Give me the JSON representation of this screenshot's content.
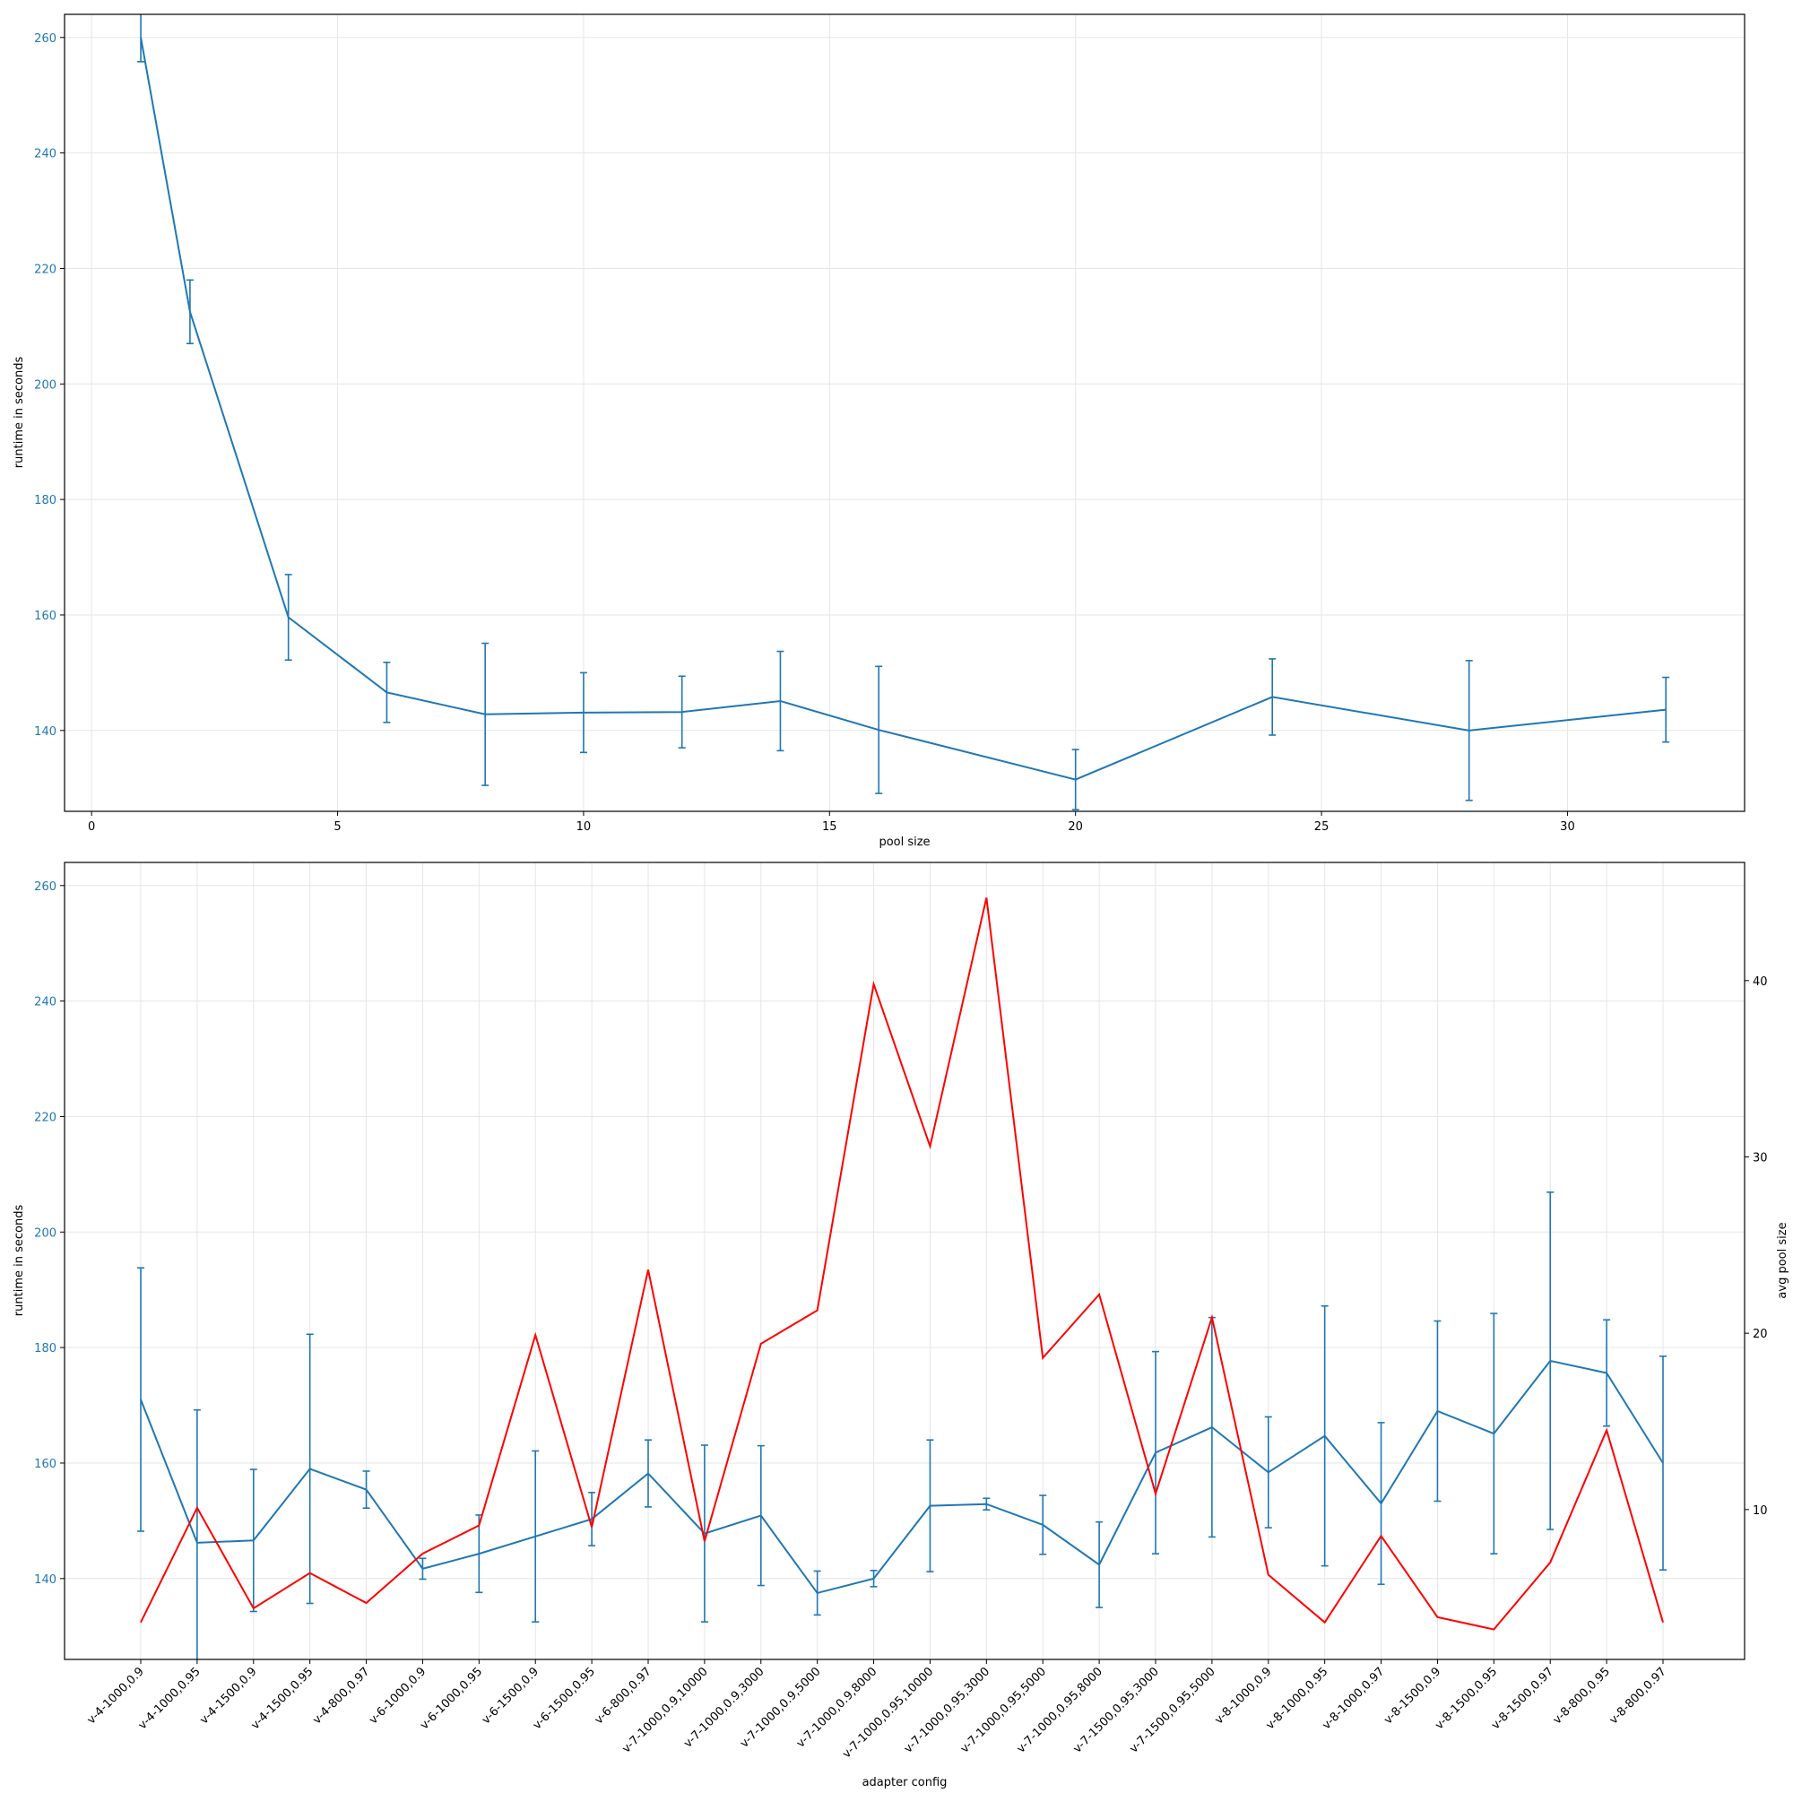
{
  "colors": {
    "runtime": "#1f77b4",
    "pool": "#ff0000"
  },
  "chart_data": [
    {
      "type": "line",
      "xlabel": "pool size",
      "ylabel": "runtime in seconds",
      "xlim": [
        -0.55,
        33.6
      ],
      "ylim": [
        126,
        264
      ],
      "xticks": [
        0,
        5,
        10,
        15,
        20,
        25,
        30
      ],
      "yticks": [
        140,
        160,
        180,
        200,
        220,
        240,
        260
      ],
      "grid": true,
      "series": [
        {
          "x": [
            1,
            2,
            4,
            6,
            8,
            10,
            12,
            14,
            16,
            20,
            24,
            28,
            32
          ],
          "y": [
            260,
            212.5,
            159.6,
            146.6,
            142.8,
            143.1,
            143.2,
            145.1,
            140.1,
            131.5,
            145.8,
            140.0,
            143.6
          ],
          "err": [
            4.2,
            5.5,
            7.4,
            5.2,
            12.3,
            6.9,
            6.2,
            8.6,
            11.0,
            5.2,
            6.6,
            12.1,
            5.6
          ]
        }
      ]
    },
    {
      "type": "line",
      "xlabel": "adapter config",
      "ylabel": "runtime in seconds",
      "y2label": "avg pool size",
      "ylim": [
        126,
        264
      ],
      "y2lim": [
        1.5,
        46.7
      ],
      "yticks": [
        140,
        160,
        180,
        200,
        220,
        240,
        260
      ],
      "y2ticks": [
        10,
        20,
        30,
        40
      ],
      "grid": true,
      "categories": [
        "v-4-1000,0.9",
        "v-4-1000,0.95",
        "v-4-1500,0.9",
        "v-4-1500,0.95",
        "v-4-800,0.97",
        "v-6-1000,0.9",
        "v-6-1000,0.95",
        "v-6-1500,0.9",
        "v-6-1500,0.95",
        "v-6-800,0.97",
        "v-7-1000,0.9,10000",
        "v-7-1000,0.9,3000",
        "v-7-1000,0.9,5000",
        "v-7-1000,0.9,8000",
        "v-7-1000,0.95,10000",
        "v-7-1000,0.95,3000",
        "v-7-1000,0.95,5000",
        "v-7-1000,0.95,8000",
        "v-7-1500,0.95,3000",
        "v-7-1500,0.95,5000",
        "v-8-1000,0.9",
        "v-8-1000,0.95",
        "v-8-1000,0.97",
        "v-8-1500,0.9",
        "v-8-1500,0.95",
        "v-8-1500,0.97",
        "v-8-800,0.95",
        "v-8-800,0.97"
      ],
      "series": [
        {
          "axis": "left",
          "values": [
            171.0,
            146.2,
            146.6,
            159.0,
            155.4,
            141.7,
            144.3,
            147.3,
            150.3,
            158.2,
            147.8,
            150.9,
            137.5,
            140.0,
            152.6,
            152.9,
            149.3,
            142.4,
            161.8,
            166.2,
            158.4,
            164.7,
            153.0,
            169.0,
            165.1,
            177.7,
            175.6,
            160.0
          ],
          "err": [
            22.8,
            23.0,
            12.3,
            23.3,
            3.2,
            1.8,
            6.7,
            14.8,
            4.6,
            5.8,
            15.3,
            12.1,
            3.8,
            1.4,
            11.4,
            1.0,
            5.1,
            7.4,
            17.5,
            19.0,
            9.6,
            22.5,
            14.0,
            15.6,
            20.8,
            29.2,
            9.2,
            18.5
          ]
        },
        {
          "axis": "right",
          "values": [
            3.6,
            10.1,
            4.4,
            6.4,
            4.7,
            7.5,
            9.1,
            19.9,
            9.0,
            23.6,
            8.2,
            19.4,
            21.3,
            39.8,
            30.6,
            44.7,
            18.6,
            22.2,
            10.9,
            20.9,
            6.3,
            3.6,
            8.5,
            3.9,
            3.2,
            7.0,
            14.5,
            3.6
          ]
        }
      ]
    }
  ]
}
